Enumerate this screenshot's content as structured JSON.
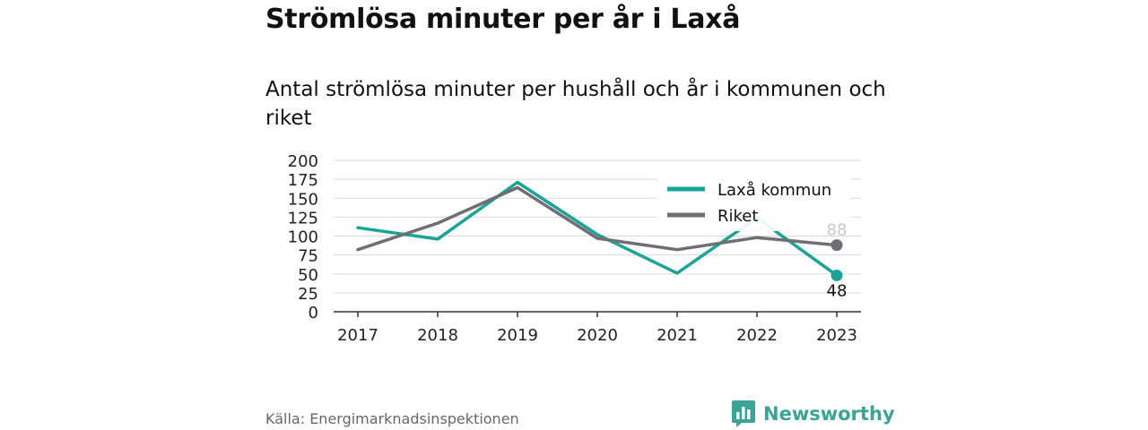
{
  "title": "Strömlösa minuter per år i Laxå",
  "subtitle": "Antal strömlösa minuter per hushåll och år i kommunen och riket",
  "source": "Källa: Energimarknadsinspektionen",
  "brand": {
    "name": "Newsworthy",
    "icon": "newsworthy-logo-icon",
    "color": "#3aa596"
  },
  "chart_data": {
    "type": "line",
    "x": [
      "2017",
      "2018",
      "2019",
      "2020",
      "2021",
      "2022",
      "2023"
    ],
    "series": [
      {
        "name": "Laxå kommun",
        "color": "#1aa496",
        "values": [
          111,
          96,
          171,
          102,
          51,
          124,
          48
        ]
      },
      {
        "name": "Riket",
        "color": "#6e6e74",
        "values": [
          82,
          117,
          164,
          97,
          82,
          98,
          88
        ]
      }
    ],
    "end_labels": [
      {
        "series": "Riket",
        "text": "88"
      },
      {
        "series": "Laxå kommun",
        "text": "48"
      }
    ],
    "yticks": [
      "0",
      "25",
      "50",
      "75",
      "100",
      "125",
      "150",
      "175",
      "200"
    ],
    "ylim": [
      0,
      200
    ],
    "grid": true,
    "legend": "top-right"
  }
}
